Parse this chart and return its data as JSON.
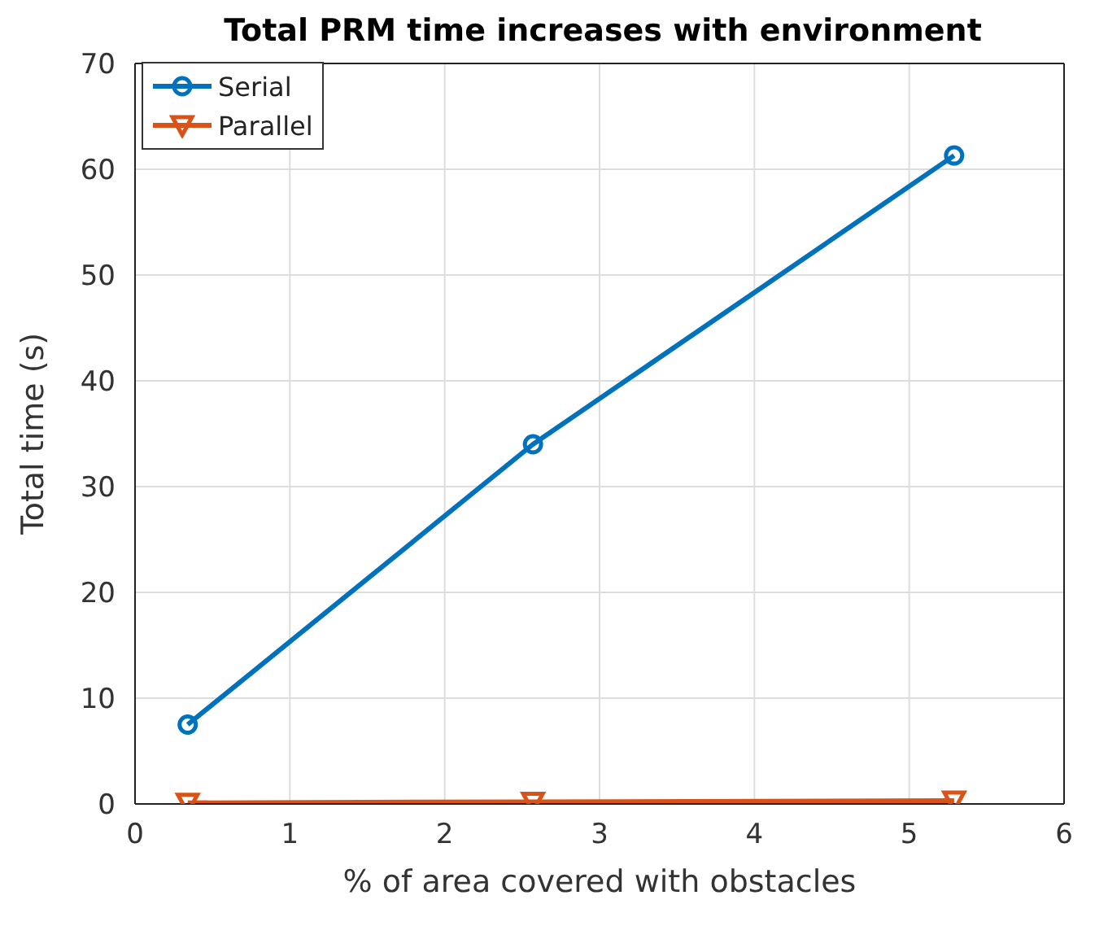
{
  "chart_data": {
    "type": "line",
    "title": "Total PRM time increases with environment",
    "xlabel": "% of area covered with obstacles",
    "ylabel": "Total time (s)",
    "series": [
      {
        "name": "Serial",
        "color": "#0072bd",
        "marker": "circle",
        "x": [
          0.34,
          2.57,
          5.29
        ],
        "values": [
          7.5,
          34,
          61.3
        ]
      },
      {
        "name": "Parallel",
        "color": "#d95319",
        "marker": "triangle",
        "x": [
          0.34,
          2.57,
          5.29
        ],
        "values": [
          0.1,
          0.2,
          0.3
        ]
      }
    ],
    "xlim": [
      0,
      6
    ],
    "xticks": [
      0,
      1,
      2,
      3,
      4,
      5,
      6
    ],
    "ylim": [
      0,
      70
    ],
    "yticks": [
      0,
      10,
      20,
      30,
      40,
      50,
      60,
      70
    ],
    "grid": true,
    "legend": "top left",
    "line_style": "solid"
  }
}
